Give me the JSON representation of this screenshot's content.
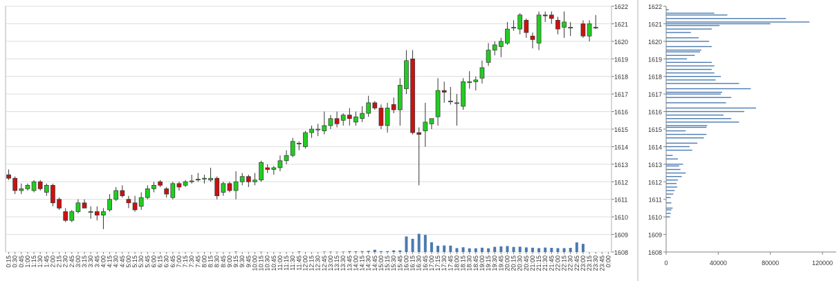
{
  "chart_data": [
    {
      "type": "candlestick",
      "title": "",
      "y_axis_position": "right",
      "ylim": [
        1608,
        1622
      ],
      "y_ticks": [
        1608,
        1609,
        1610,
        1611,
        1612,
        1613,
        1614,
        1615,
        1616,
        1617,
        1618,
        1619,
        1620,
        1621,
        1622
      ],
      "up_color": "#22cc22",
      "down_color": "#cc1111",
      "volume_color": "#4a7ab0",
      "volume_max": 14,
      "grid": "horizontal",
      "x_labels": [
        "0:15",
        "0:30",
        "0:45",
        "1:00",
        "1:15",
        "1:30",
        "1:45",
        "2:00",
        "2:15",
        "2:30",
        "2:45",
        "3:00",
        "3:15",
        "3:30",
        "3:45",
        "4:00",
        "4:15",
        "4:30",
        "4:45",
        "5:00",
        "5:15",
        "5:30",
        "5:45",
        "6:00",
        "6:15",
        "6:30",
        "6:45",
        "7:00",
        "7:15",
        "7:30",
        "7:45",
        "8:00",
        "8:15",
        "8:30",
        "8:45",
        "9:00",
        "9:15",
        "9:30",
        "9:45",
        "10:00",
        "10:15",
        "10:30",
        "10:45",
        "11:00",
        "11:15",
        "11:30",
        "11:45",
        "12:00",
        "12:15",
        "12:30",
        "12:45",
        "13:00",
        "13:15",
        "13:30",
        "13:45",
        "14:00",
        "14:15",
        "14:30",
        "14:45",
        "15:00",
        "15:15",
        "15:30",
        "15:45",
        "16:00",
        "16:15",
        "16:30",
        "16:45",
        "17:00",
        "17:15",
        "17:30",
        "17:45",
        "18:00",
        "18:15",
        "18:30",
        "18:45",
        "19:00",
        "19:15",
        "19:30",
        "19:45",
        "20:00",
        "20:15",
        "20:30",
        "20:45",
        "21:00",
        "21:15",
        "21:30",
        "21:45",
        "22:00",
        "22:15",
        "22:30",
        "22:45",
        "23:00",
        "23:15",
        "23:30",
        "23:45",
        "0:00"
      ],
      "candles": [
        {
          "o": 1612.4,
          "h": 1612.7,
          "l": 1612.1,
          "c": 1612.2
        },
        {
          "o": 1612.2,
          "h": 1612.3,
          "l": 1611.3,
          "c": 1611.5
        },
        {
          "o": 1611.5,
          "h": 1611.9,
          "l": 1611.3,
          "c": 1611.6
        },
        {
          "o": 1611.6,
          "h": 1611.9,
          "l": 1611.5,
          "c": 1611.8
        },
        {
          "o": 1611.5,
          "h": 1612.1,
          "l": 1611.4,
          "c": 1612.0
        },
        {
          "o": 1612.0,
          "h": 1612.1,
          "l": 1611.5,
          "c": 1611.6
        },
        {
          "o": 1611.4,
          "h": 1611.9,
          "l": 1611.2,
          "c": 1611.8
        },
        {
          "o": 1611.8,
          "h": 1611.9,
          "l": 1610.6,
          "c": 1610.8
        },
        {
          "o": 1611.0,
          "h": 1611.1,
          "l": 1610.4,
          "c": 1610.5
        },
        {
          "o": 1610.3,
          "h": 1610.5,
          "l": 1609.7,
          "c": 1609.8
        },
        {
          "o": 1609.8,
          "h": 1610.4,
          "l": 1609.7,
          "c": 1610.3
        },
        {
          "o": 1610.3,
          "h": 1611.0,
          "l": 1610.2,
          "c": 1610.8
        },
        {
          "o": 1610.8,
          "h": 1611.0,
          "l": 1610.5,
          "c": 1610.5
        },
        {
          "o": 1610.3,
          "h": 1610.6,
          "l": 1609.9,
          "c": 1610.3
        },
        {
          "o": 1610.3,
          "h": 1610.6,
          "l": 1609.8,
          "c": 1610.1
        },
        {
          "o": 1610.1,
          "h": 1610.5,
          "l": 1609.3,
          "c": 1610.3
        },
        {
          "o": 1610.4,
          "h": 1611.3,
          "l": 1610.3,
          "c": 1611.0
        },
        {
          "o": 1611.0,
          "h": 1611.7,
          "l": 1610.9,
          "c": 1611.5
        },
        {
          "o": 1611.5,
          "h": 1611.8,
          "l": 1611.1,
          "c": 1611.2
        },
        {
          "o": 1611.0,
          "h": 1611.2,
          "l": 1610.5,
          "c": 1610.8
        },
        {
          "o": 1610.8,
          "h": 1611.2,
          "l": 1610.3,
          "c": 1610.4
        },
        {
          "o": 1610.6,
          "h": 1611.4,
          "l": 1610.4,
          "c": 1611.1
        },
        {
          "o": 1611.1,
          "h": 1611.8,
          "l": 1611.0,
          "c": 1611.6
        },
        {
          "o": 1611.6,
          "h": 1612.0,
          "l": 1611.4,
          "c": 1611.8
        },
        {
          "o": 1612.0,
          "h": 1612.1,
          "l": 1611.7,
          "c": 1611.8
        },
        {
          "o": 1611.6,
          "h": 1611.7,
          "l": 1611.1,
          "c": 1611.3
        },
        {
          "o": 1611.1,
          "h": 1612.0,
          "l": 1611.0,
          "c": 1611.9
        },
        {
          "o": 1611.9,
          "h": 1612.0,
          "l": 1611.5,
          "c": 1611.7
        },
        {
          "o": 1611.8,
          "h": 1612.1,
          "l": 1611.7,
          "c": 1612.0
        },
        {
          "o": 1612.0,
          "h": 1612.4,
          "l": 1611.9,
          "c": 1612.05
        },
        {
          "o": 1612.1,
          "h": 1612.5,
          "l": 1612.0,
          "c": 1612.15
        },
        {
          "o": 1612.2,
          "h": 1612.4,
          "l": 1611.9,
          "c": 1612.2
        },
        {
          "o": 1612.1,
          "h": 1612.8,
          "l": 1612.0,
          "c": 1612.2
        },
        {
          "o": 1612.2,
          "h": 1612.3,
          "l": 1611.0,
          "c": 1611.2
        },
        {
          "o": 1611.4,
          "h": 1612.0,
          "l": 1611.2,
          "c": 1611.9
        },
        {
          "o": 1611.9,
          "h": 1612.0,
          "l": 1611.4,
          "c": 1611.5
        },
        {
          "o": 1611.5,
          "h": 1612.6,
          "l": 1611.0,
          "c": 1612.0
        },
        {
          "o": 1612.0,
          "h": 1612.5,
          "l": 1611.8,
          "c": 1612.3
        },
        {
          "o": 1612.3,
          "h": 1612.4,
          "l": 1611.7,
          "c": 1612.0
        },
        {
          "o": 1612.0,
          "h": 1612.5,
          "l": 1611.8,
          "c": 1612.1
        },
        {
          "o": 1612.1,
          "h": 1613.2,
          "l": 1612.0,
          "c": 1613.1
        },
        {
          "o": 1612.8,
          "h": 1613.0,
          "l": 1612.5,
          "c": 1612.7
        },
        {
          "o": 1612.7,
          "h": 1612.9,
          "l": 1612.4,
          "c": 1612.8
        },
        {
          "o": 1612.8,
          "h": 1613.5,
          "l": 1612.6,
          "c": 1613.2
        },
        {
          "o": 1613.2,
          "h": 1613.8,
          "l": 1613.0,
          "c": 1613.5
        },
        {
          "o": 1613.5,
          "h": 1614.5,
          "l": 1613.4,
          "c": 1614.3
        },
        {
          "o": 1614.2,
          "h": 1614.3,
          "l": 1613.8,
          "c": 1614.2
        },
        {
          "o": 1614.0,
          "h": 1614.9,
          "l": 1613.9,
          "c": 1614.8
        },
        {
          "o": 1614.8,
          "h": 1615.2,
          "l": 1614.5,
          "c": 1615.0
        },
        {
          "o": 1615.0,
          "h": 1615.3,
          "l": 1614.6,
          "c": 1615.0
        },
        {
          "o": 1614.9,
          "h": 1616.0,
          "l": 1614.7,
          "c": 1615.2
        },
        {
          "o": 1615.2,
          "h": 1615.8,
          "l": 1615.0,
          "c": 1615.6
        },
        {
          "o": 1615.6,
          "h": 1616.0,
          "l": 1615.1,
          "c": 1615.3
        },
        {
          "o": 1615.5,
          "h": 1615.9,
          "l": 1615.2,
          "c": 1615.8
        },
        {
          "o": 1615.8,
          "h": 1616.2,
          "l": 1615.2,
          "c": 1615.6
        },
        {
          "o": 1615.4,
          "h": 1616.0,
          "l": 1615.2,
          "c": 1615.7
        },
        {
          "o": 1615.6,
          "h": 1616.3,
          "l": 1615.4,
          "c": 1615.9
        },
        {
          "o": 1615.9,
          "h": 1616.9,
          "l": 1615.7,
          "c": 1616.5
        },
        {
          "o": 1616.5,
          "h": 1616.6,
          "l": 1616.1,
          "c": 1616.2
        },
        {
          "o": 1616.2,
          "h": 1616.4,
          "l": 1615.0,
          "c": 1615.2
        },
        {
          "o": 1615.2,
          "h": 1616.5,
          "l": 1614.8,
          "c": 1616.2
        },
        {
          "o": 1616.4,
          "h": 1616.8,
          "l": 1615.9,
          "c": 1616.1
        },
        {
          "o": 1616.1,
          "h": 1617.9,
          "l": 1615.2,
          "c": 1617.5
        },
        {
          "o": 1617.3,
          "h": 1619.5,
          "l": 1617.0,
          "c": 1618.9
        },
        {
          "o": 1619.0,
          "h": 1619.5,
          "l": 1614.7,
          "c": 1614.8
        },
        {
          "o": 1614.8,
          "h": 1615.1,
          "l": 1611.8,
          "c": 1614.7
        },
        {
          "o": 1614.9,
          "h": 1616.5,
          "l": 1614.0,
          "c": 1615.4
        },
        {
          "o": 1615.3,
          "h": 1615.6,
          "l": 1615.0,
          "c": 1615.6
        },
        {
          "o": 1615.7,
          "h": 1617.9,
          "l": 1615.2,
          "c": 1617.2
        },
        {
          "o": 1617.2,
          "h": 1617.7,
          "l": 1616.5,
          "c": 1617.1
        },
        {
          "o": 1616.6,
          "h": 1617.4,
          "l": 1616.4,
          "c": 1616.6
        },
        {
          "o": 1616.5,
          "h": 1617.0,
          "l": 1615.2,
          "c": 1616.5
        },
        {
          "o": 1616.3,
          "h": 1617.9,
          "l": 1616.1,
          "c": 1617.7
        },
        {
          "o": 1617.7,
          "h": 1618.3,
          "l": 1617.3,
          "c": 1617.7
        },
        {
          "o": 1617.7,
          "h": 1618.0,
          "l": 1617.2,
          "c": 1617.8
        },
        {
          "o": 1617.9,
          "h": 1618.9,
          "l": 1617.6,
          "c": 1618.5
        },
        {
          "o": 1618.8,
          "h": 1619.9,
          "l": 1618.6,
          "c": 1619.5
        },
        {
          "o": 1619.5,
          "h": 1620.0,
          "l": 1619.2,
          "c": 1619.8
        },
        {
          "o": 1619.7,
          "h": 1620.2,
          "l": 1619.1,
          "c": 1620.0
        },
        {
          "o": 1619.9,
          "h": 1621.1,
          "l": 1619.8,
          "c": 1620.7
        },
        {
          "o": 1620.8,
          "h": 1621.2,
          "l": 1620.6,
          "c": 1620.8
        },
        {
          "o": 1620.7,
          "h": 1621.6,
          "l": 1620.4,
          "c": 1621.5
        },
        {
          "o": 1621.2,
          "h": 1621.3,
          "l": 1620.2,
          "c": 1620.5
        },
        {
          "o": 1620.3,
          "h": 1620.5,
          "l": 1619.6,
          "c": 1620.1
        },
        {
          "o": 1619.9,
          "h": 1621.7,
          "l": 1619.5,
          "c": 1621.5
        },
        {
          "o": 1621.5,
          "h": 1621.7,
          "l": 1621.1,
          "c": 1621.45
        },
        {
          "o": 1621.5,
          "h": 1621.7,
          "l": 1621.0,
          "c": 1621.3
        },
        {
          "o": 1621.2,
          "h": 1621.4,
          "l": 1620.4,
          "c": 1620.7
        },
        {
          "o": 1620.8,
          "h": 1621.7,
          "l": 1620.2,
          "c": 1621.1
        },
        {
          "o": 1620.8,
          "h": 1621.1,
          "l": 1620.3,
          "c": 1620.8
        },
        null,
        {
          "o": 1621.0,
          "h": 1621.2,
          "l": 1620.2,
          "c": 1620.3
        },
        {
          "o": 1620.3,
          "h": 1621.2,
          "l": 1620.0,
          "c": 1621.0
        },
        {
          "o": 1620.8,
          "h": 1621.5,
          "l": 1620.7,
          "c": 1620.8
        },
        null,
        null
      ],
      "volumes": [
        0,
        0,
        0,
        0,
        0,
        0,
        0,
        0,
        0,
        0,
        0,
        0,
        0,
        0,
        0,
        0,
        0,
        0,
        0,
        0,
        0,
        0,
        0,
        0,
        0,
        0,
        0,
        0,
        0,
        0,
        0,
        0,
        0,
        0,
        0,
        0,
        0.3,
        0,
        0,
        0,
        0.2,
        0,
        0,
        0,
        0,
        0,
        0.4,
        0,
        0,
        0,
        0.3,
        0.3,
        0.2,
        0.3,
        0.6,
        0.5,
        0.6,
        0.8,
        1.5,
        0.6,
        0.6,
        1.1,
        1.1,
        10.5,
        8.9,
        12.3,
        11.6,
        6.6,
        4.2,
        4.4,
        4.3,
        2.6,
        3.2,
        2.5,
        2.5,
        2.9,
        2.5,
        3.5,
        3.8,
        4.0,
        3.4,
        3.6,
        3.1,
        2.9,
        2.6,
        3.0,
        2.8,
        2.6,
        2.6,
        2.8,
        6.5,
        5.5,
        0,
        0,
        0,
        0
      ]
    },
    {
      "type": "horizontal-bar",
      "title": "",
      "xlim": [
        0,
        120000
      ],
      "x_ticks": [
        "0",
        "40000",
        "80000",
        "120000"
      ],
      "ylim": [
        1608,
        1622
      ],
      "y_ticks": [
        1608,
        1609,
        1610,
        1611,
        1612,
        1613,
        1614,
        1615,
        1616,
        1617,
        1618,
        1619,
        1620,
        1621,
        1622
      ],
      "bar_color": "#4a7ab0",
      "profile": [
        {
          "p": 1610.0,
          "v": 3000
        },
        {
          "p": 1610.2,
          "v": 3500
        },
        {
          "p": 1610.4,
          "v": 4000
        },
        {
          "p": 1610.5,
          "v": 5000
        },
        {
          "p": 1610.8,
          "v": 4000
        },
        {
          "p": 1611.1,
          "v": 3500
        },
        {
          "p": 1611.3,
          "v": 5500
        },
        {
          "p": 1611.5,
          "v": 6500
        },
        {
          "p": 1611.7,
          "v": 8500
        },
        {
          "p": 1611.9,
          "v": 8000
        },
        {
          "p": 1612.1,
          "v": 9000
        },
        {
          "p": 1612.3,
          "v": 12000
        },
        {
          "p": 1612.5,
          "v": 15000
        },
        {
          "p": 1612.7,
          "v": 11000
        },
        {
          "p": 1612.9,
          "v": 10000
        },
        {
          "p": 1613.0,
          "v": 13000
        },
        {
          "p": 1613.3,
          "v": 9000
        },
        {
          "p": 1613.5,
          "v": 5000
        },
        {
          "p": 1613.8,
          "v": 20000
        },
        {
          "p": 1614.0,
          "v": 18000
        },
        {
          "p": 1614.2,
          "v": 24000
        },
        {
          "p": 1614.5,
          "v": 29000
        },
        {
          "p": 1614.7,
          "v": 31000
        },
        {
          "p": 1614.9,
          "v": 15000
        },
        {
          "p": 1615.1,
          "v": 31000
        },
        {
          "p": 1615.2,
          "v": 31500
        },
        {
          "p": 1615.4,
          "v": 56000
        },
        {
          "p": 1615.6,
          "v": 50000
        },
        {
          "p": 1615.8,
          "v": 44000
        },
        {
          "p": 1616.0,
          "v": 60000
        },
        {
          "p": 1616.2,
          "v": 69000
        },
        {
          "p": 1616.5,
          "v": 46000
        },
        {
          "p": 1616.8,
          "v": 50000
        },
        {
          "p": 1617.0,
          "v": 42000
        },
        {
          "p": 1617.1,
          "v": 43000
        },
        {
          "p": 1617.3,
          "v": 65000
        },
        {
          "p": 1617.6,
          "v": 56000
        },
        {
          "p": 1617.8,
          "v": 38000
        },
        {
          "p": 1618.0,
          "v": 42000
        },
        {
          "p": 1618.2,
          "v": 37000
        },
        {
          "p": 1618.4,
          "v": 35000
        },
        {
          "p": 1618.6,
          "v": 37000
        },
        {
          "p": 1618.8,
          "v": 35000
        },
        {
          "p": 1619.0,
          "v": 16000
        },
        {
          "p": 1619.2,
          "v": 22000
        },
        {
          "p": 1619.4,
          "v": 26000
        },
        {
          "p": 1619.5,
          "v": 27000
        },
        {
          "p": 1619.7,
          "v": 35000
        },
        {
          "p": 1620.0,
          "v": 33000
        },
        {
          "p": 1620.2,
          "v": 25000
        },
        {
          "p": 1620.5,
          "v": 19000
        },
        {
          "p": 1620.7,
          "v": 35000
        },
        {
          "p": 1620.9,
          "v": 41000
        },
        {
          "p": 1621.0,
          "v": 80000
        },
        {
          "p": 1621.1,
          "v": 110000
        },
        {
          "p": 1621.3,
          "v": 92000
        },
        {
          "p": 1621.5,
          "v": 47000
        },
        {
          "p": 1621.6,
          "v": 37000
        },
        {
          "p": 1621.8,
          "v": 2000
        }
      ]
    }
  ]
}
